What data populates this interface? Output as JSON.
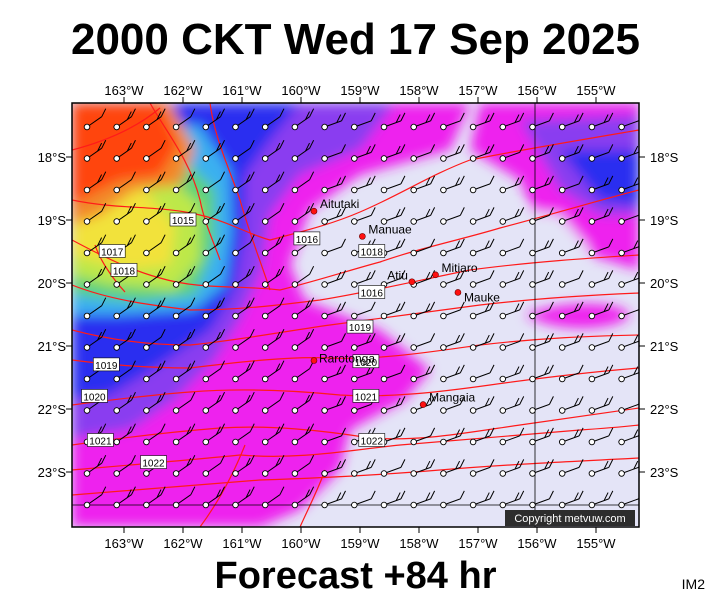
{
  "title": "2000 CKT Wed 17 Sep 2025",
  "footer": "Forecast +84 hr",
  "corner_code": "IM2",
  "copyright": "Copyright metvuw.com",
  "map": {
    "lon_labels": [
      "163°W",
      "162°W",
      "161°W",
      "160°W",
      "159°W",
      "158°W",
      "157°W",
      "156°W",
      "155°W"
    ],
    "lat_labels": [
      "18°S",
      "19°S",
      "20°S",
      "21°S",
      "22°S",
      "23°S"
    ],
    "places": [
      {
        "name": "Aitutaki",
        "lon": -159.78,
        "lat": -18.86
      },
      {
        "name": "Manuae",
        "lon": -158.96,
        "lat": -19.26
      },
      {
        "name": "Mitiaro",
        "lon": -157.72,
        "lat": -19.87
      },
      {
        "name": "Atiu",
        "lon": -158.12,
        "lat": -19.98
      },
      {
        "name": "Mauke",
        "lon": -157.34,
        "lat": -20.15
      },
      {
        "name": "Rarotonga",
        "lon": -159.78,
        "lat": -21.23
      },
      {
        "name": "Mangaia",
        "lon": -157.93,
        "lat": -21.93
      }
    ],
    "isobar_labels": [
      {
        "text": "1015",
        "lon": -162.0,
        "lat": -19.0
      },
      {
        "text": "1017",
        "lon": -163.2,
        "lat": -19.5
      },
      {
        "text": "1018",
        "lon": -163.0,
        "lat": -19.8
      },
      {
        "text": "1016",
        "lon": -159.9,
        "lat": -19.3
      },
      {
        "text": "1018",
        "lon": -158.8,
        "lat": -19.5
      },
      {
        "text": "1016",
        "lon": -158.8,
        "lat": -20.15
      },
      {
        "text": "1019",
        "lon": -159.0,
        "lat": -20.7
      },
      {
        "text": "1020",
        "lon": -158.9,
        "lat": -21.25
      },
      {
        "text": "1019",
        "lon": -163.3,
        "lat": -21.3
      },
      {
        "text": "1020",
        "lon": -163.5,
        "lat": -21.8
      },
      {
        "text": "1021",
        "lon": -158.9,
        "lat": -21.8
      },
      {
        "text": "1021",
        "lon": -163.4,
        "lat": -22.5
      },
      {
        "text": "1022",
        "lon": -158.8,
        "lat": -22.5
      },
      {
        "text": "1022",
        "lon": -162.5,
        "lat": -22.85
      }
    ]
  }
}
